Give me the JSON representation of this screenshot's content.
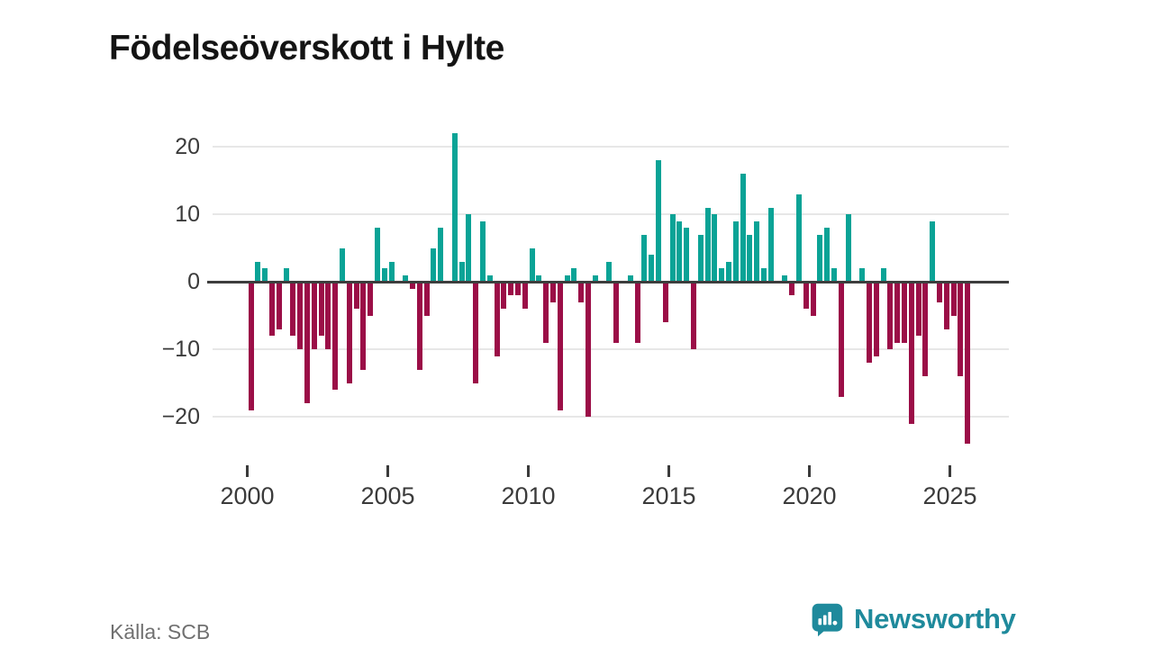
{
  "page": {
    "title": "Födelseöverskott i Hylte",
    "source": "Källa: SCB"
  },
  "logo": {
    "brand": "Newsworthy",
    "icon": "newsworthy-logo-icon"
  },
  "colors": {
    "positive_bar": "#0AA396",
    "negative_bar": "#9B0E47",
    "zero_line": "#3D3D3D",
    "grid_line": "#E7E7E7",
    "axis_text": "#3B3B3B",
    "title_text": "#141414",
    "source_text": "#707070",
    "brand_teal": "#1F8A9C"
  },
  "chart_data": {
    "type": "bar",
    "title": "Födelseöverskott i Hylte",
    "frequency": "quarterly",
    "start_period": "2000-Q1",
    "end_period": "2025-Q3",
    "series": [
      {
        "name": "Födelseöverskott",
        "values": [
          -19,
          3,
          2,
          -8,
          -7,
          2,
          -8,
          -10,
          -18,
          -10,
          -8,
          -10,
          -16,
          5,
          -15,
          -4,
          -13,
          -5,
          8,
          2,
          3,
          0,
          1,
          -1,
          -13,
          -5,
          5,
          8,
          0,
          22,
          3,
          10,
          -15,
          9,
          1,
          -11,
          -4,
          -2,
          -2,
          -4,
          5,
          1,
          -9,
          -3,
          -19,
          1,
          2,
          -3,
          -20,
          1,
          0,
          3,
          -9,
          0,
          1,
          -9,
          7,
          4,
          18,
          -6,
          10,
          9,
          8,
          -10,
          7,
          11,
          10,
          2,
          3,
          9,
          16,
          7,
          9,
          2,
          11,
          0,
          1,
          -2,
          13,
          -4,
          -5,
          7,
          8,
          2,
          -17,
          10,
          0,
          2,
          -12,
          -11,
          2,
          -10,
          -9,
          -9,
          -21,
          -8,
          -14,
          9,
          -3,
          -7,
          -5,
          -14,
          -24
        ]
      }
    ],
    "y_ticks": [
      20,
      10,
      0,
      -10,
      -20
    ],
    "y_tick_labels": [
      "20",
      "10",
      "0",
      "−10",
      "−20"
    ],
    "x_tick_years": [
      2000,
      2005,
      2010,
      2015,
      2020,
      2025
    ],
    "x_tick_labels": [
      "2000",
      "2005",
      "2010",
      "2015",
      "2020",
      "2025"
    ],
    "ylim": [
      -25,
      23
    ],
    "grid": "horizontal",
    "legend": "none",
    "positive_color": "#0AA396",
    "negative_color": "#9B0E47"
  }
}
